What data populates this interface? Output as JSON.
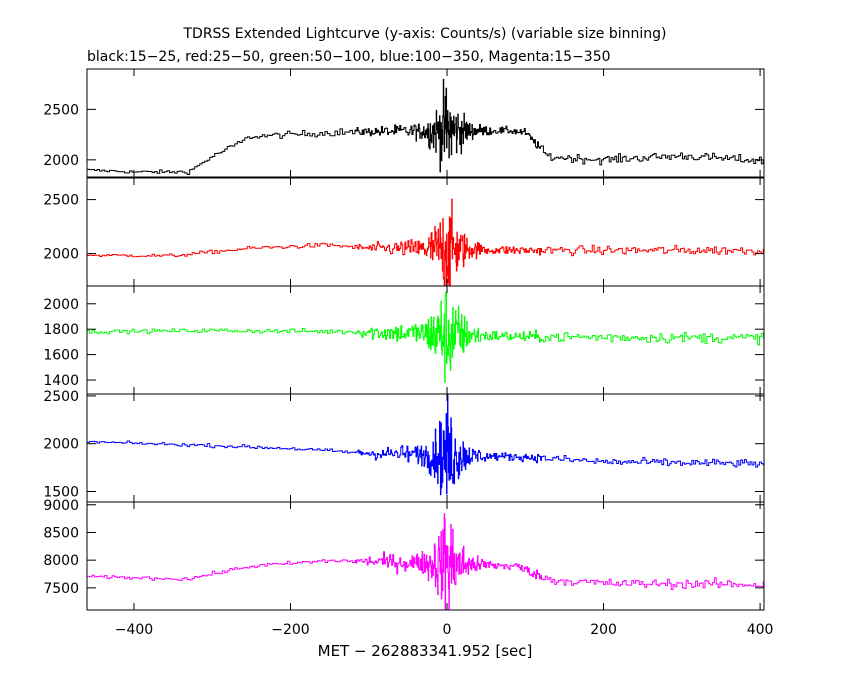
{
  "chart_data": {
    "type": "line",
    "title": "TDRSS Extended Lightcurve (y-axis: Counts/s) (variable size binning)",
    "subtitle": "black:15−25, red:25−50, green:50−100, blue:100−350, Magenta:15−350",
    "xlabel": "MET − 262883341.952 [sec]",
    "xlim": [
      -460,
      405
    ],
    "x_ticks": [
      -400,
      -200,
      0,
      200,
      400
    ],
    "x_tick_labels": [
      "−400",
      "−200",
      "0",
      "200",
      "400"
    ],
    "grid": false,
    "panels": [
      {
        "band": "15−25",
        "color": "#000000",
        "ylim": [
          1830,
          2900
        ],
        "y_ticks": [
          2000,
          2500
        ],
        "baseline": [
          [
            -460,
            1900
          ],
          [
            -400,
            1880
          ],
          [
            -330,
            1880
          ],
          [
            -300,
            2030
          ],
          [
            -250,
            2230
          ],
          [
            -150,
            2270
          ],
          [
            -100,
            2280
          ],
          [
            80,
            2290
          ],
          [
            100,
            2270
          ],
          [
            130,
            2030
          ],
          [
            200,
            2000
          ],
          [
            300,
            2040
          ],
          [
            405,
            1990
          ]
        ],
        "noise": [
          [
            -460,
            10
          ],
          [
            -300,
            15
          ],
          [
            -100,
            30
          ],
          [
            -30,
            60
          ],
          [
            -10,
            200
          ],
          [
            0,
            380
          ],
          [
            10,
            200
          ],
          [
            30,
            60
          ],
          [
            60,
            25
          ],
          [
            130,
            30
          ],
          [
            405,
            30
          ]
        ]
      },
      {
        "band": "25−50",
        "color": "#ff0000",
        "ylim": [
          1700,
          2700
        ],
        "y_ticks": [
          2000,
          2500
        ],
        "baseline": [
          [
            -460,
            1985
          ],
          [
            -350,
            1980
          ],
          [
            -250,
            2050
          ],
          [
            -150,
            2080
          ],
          [
            -100,
            2050
          ],
          [
            100,
            2030
          ],
          [
            405,
            2030
          ]
        ],
        "noise": [
          [
            -460,
            10
          ],
          [
            -120,
            15
          ],
          [
            -100,
            30
          ],
          [
            -30,
            70
          ],
          [
            -10,
            200
          ],
          [
            0,
            380
          ],
          [
            10,
            200
          ],
          [
            30,
            60
          ],
          [
            60,
            30
          ],
          [
            405,
            30
          ]
        ]
      },
      {
        "band": "50−100",
        "color": "#00ff00",
        "ylim": [
          1290,
          2140
        ],
        "y_ticks": [
          1400,
          1600,
          1800,
          2000
        ],
        "y_tick_labels": [
          "1400",
          "1600",
          "1800",
          "2000"
        ],
        "baseline": [
          [
            -460,
            1780
          ],
          [
            -300,
            1790
          ],
          [
            -120,
            1780
          ],
          [
            0,
            1760
          ],
          [
            100,
            1740
          ],
          [
            405,
            1730
          ]
        ],
        "noise": [
          [
            -460,
            10
          ],
          [
            -120,
            15
          ],
          [
            -100,
            40
          ],
          [
            -30,
            70
          ],
          [
            -10,
            200
          ],
          [
            0,
            300
          ],
          [
            10,
            200
          ],
          [
            30,
            60
          ],
          [
            60,
            30
          ],
          [
            405,
            30
          ]
        ]
      },
      {
        "band": "100−350",
        "color": "#0000ff",
        "ylim": [
          1390,
          2520
        ],
        "y_ticks": [
          1500,
          2000,
          2500
        ],
        "baseline": [
          [
            -460,
            2020
          ],
          [
            -300,
            1980
          ],
          [
            -200,
            1950
          ],
          [
            -100,
            1900
          ],
          [
            100,
            1860
          ],
          [
            200,
            1810
          ],
          [
            405,
            1790
          ]
        ],
        "noise": [
          [
            -460,
            10
          ],
          [
            -120,
            15
          ],
          [
            -100,
            40
          ],
          [
            -30,
            80
          ],
          [
            -10,
            230
          ],
          [
            0,
            450
          ],
          [
            10,
            230
          ],
          [
            30,
            70
          ],
          [
            60,
            30
          ],
          [
            405,
            30
          ]
        ]
      },
      {
        "band": "15−350",
        "color": "#ff00ff",
        "ylim": [
          7100,
          9050
        ],
        "y_ticks": [
          7500,
          8000,
          8500,
          9000
        ],
        "baseline": [
          [
            -460,
            7700
          ],
          [
            -330,
            7660
          ],
          [
            -300,
            7750
          ],
          [
            -250,
            7890
          ],
          [
            -150,
            7990
          ],
          [
            -100,
            7980
          ],
          [
            90,
            7890
          ],
          [
            130,
            7650
          ],
          [
            200,
            7580
          ],
          [
            405,
            7560
          ]
        ],
        "noise": [
          [
            -460,
            20
          ],
          [
            -120,
            30
          ],
          [
            -100,
            70
          ],
          [
            -30,
            150
          ],
          [
            -10,
            420
          ],
          [
            0,
            900
          ],
          [
            10,
            420
          ],
          [
            30,
            130
          ],
          [
            60,
            60
          ],
          [
            405,
            60
          ]
        ]
      }
    ]
  }
}
